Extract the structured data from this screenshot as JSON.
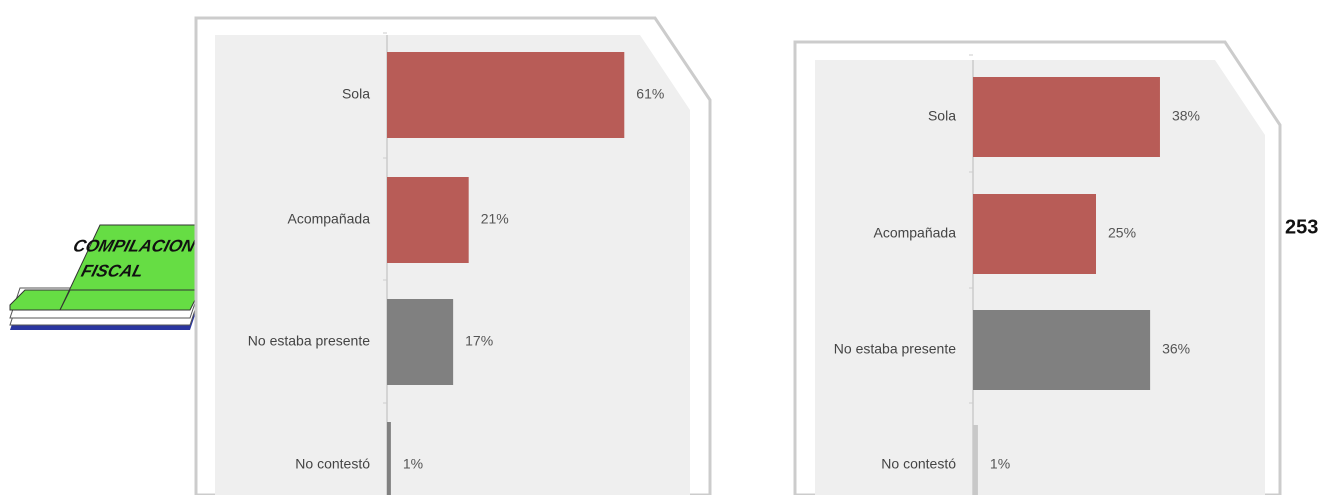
{
  "chart_data": [
    {
      "type": "bar",
      "orientation": "horizontal",
      "categories": [
        "Sola",
        "Acompañada",
        "No estaba presente",
        "No contestó"
      ],
      "values": [
        61,
        21,
        17,
        1
      ],
      "value_labels": [
        "61%",
        "21%",
        "17%",
        "1%"
      ],
      "colors": [
        "#b85c57",
        "#b85c57",
        "#808080",
        "#808080"
      ]
    },
    {
      "type": "bar",
      "orientation": "horizontal",
      "categories": [
        "Sola",
        "Acompañada",
        "No estaba presente",
        "No contestó"
      ],
      "values": [
        38,
        25,
        36,
        1
      ],
      "value_labels": [
        "38%",
        "25%",
        "36%",
        "1%"
      ],
      "colors": [
        "#b85c57",
        "#b85c57",
        "#808080",
        "#c8c8c8"
      ]
    }
  ],
  "logo_text": [
    "COMPILACION",
    "FISCAL"
  ],
  "page_number": "253"
}
